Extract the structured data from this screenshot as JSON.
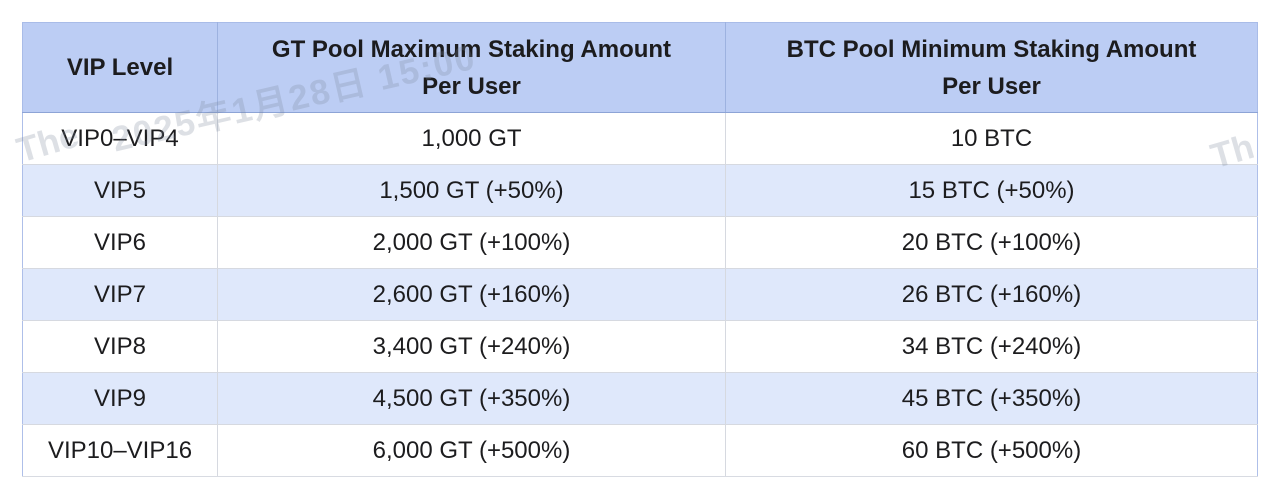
{
  "table": {
    "headers": [
      "VIP Level",
      "GT Pool Maximum Staking Amount\nPer User",
      "BTC Pool Minimum Staking Amount\nPer User"
    ],
    "rows": [
      {
        "level": "VIP0–VIP4",
        "gt": "1,000 GT",
        "btc": "10 BTC"
      },
      {
        "level": "VIP5",
        "gt": "1,500 GT (+50%)",
        "btc": "15 BTC (+50%)"
      },
      {
        "level": "VIP6",
        "gt": "2,000 GT (+100%)",
        "btc": "20 BTC (+100%)"
      },
      {
        "level": "VIP7",
        "gt": "2,600 GT (+160%)",
        "btc": "26 BTC (+160%)"
      },
      {
        "level": "VIP8",
        "gt": "3,400 GT (+240%)",
        "btc": "34 BTC (+240%)"
      },
      {
        "level": "VIP9",
        "gt": "4,500 GT (+350%)",
        "btc": "45 BTC (+350%)"
      },
      {
        "level": "VIP10–VIP16",
        "gt": "6,000 GT (+500%)",
        "btc": "60 BTC (+500%)"
      }
    ]
  },
  "watermark": {
    "fragments": [
      "The",
      "2025年1月28日 15:00",
      "Th"
    ]
  },
  "colors": {
    "header_bg": "#bccdf4",
    "row_alt_bg": "#dfe8fb",
    "text": "#1c1c1e"
  },
  "chart_data": {
    "type": "table",
    "title": "VIP staking limits per pool",
    "columns": [
      "VIP Level",
      "GT Pool Maximum Staking Amount Per User",
      "BTC Pool Minimum Staking Amount Per User"
    ],
    "rows": [
      [
        "VIP0–VIP4",
        "1,000 GT",
        "10 BTC"
      ],
      [
        "VIP5",
        "1,500 GT (+50%)",
        "15 BTC (+50%)"
      ],
      [
        "VIP6",
        "2,000 GT (+100%)",
        "20 BTC (+100%)"
      ],
      [
        "VIP7",
        "2,600 GT (+160%)",
        "26 BTC (+160%)"
      ],
      [
        "VIP8",
        "3,400 GT (+240%)",
        "34 BTC (+240%)"
      ],
      [
        "VIP9",
        "4,500 GT (+350%)",
        "45 BTC (+350%)"
      ],
      [
        "VIP10–VIP16",
        "6,000 GT (+500%)",
        "60 BTC (+500%)"
      ]
    ],
    "notes": {
      "gt_base": 1000,
      "btc_base": 10,
      "bonus_percent": [
        0,
        50,
        100,
        160,
        240,
        350,
        500
      ]
    }
  }
}
